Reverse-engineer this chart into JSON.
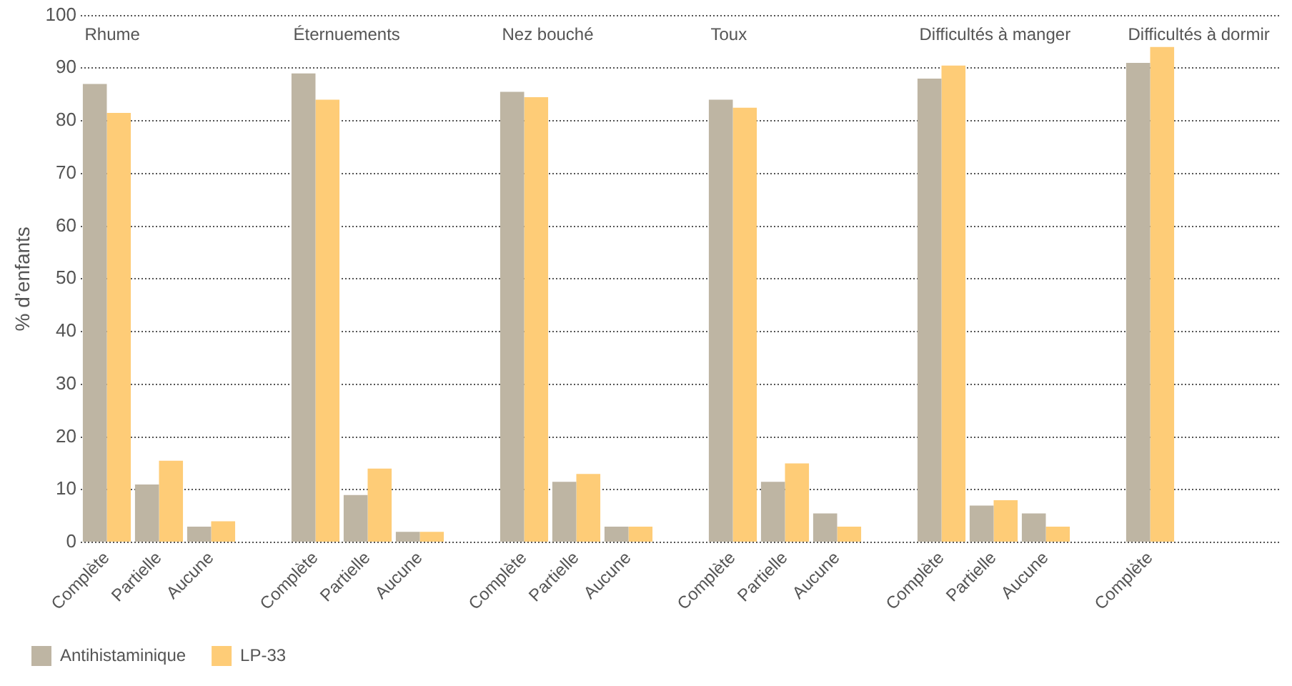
{
  "chart_data": {
    "type": "bar",
    "ylabel": "% d’enfants",
    "categories": [
      "Complète",
      "Partielle",
      "Aucune",
      null,
      "Complète",
      "Partielle",
      "Aucune",
      null,
      "Complète",
      "Partielle",
      "Aucune",
      null,
      "Complète",
      "Partielle",
      "Aucune",
      null,
      "Complète",
      "Partielle",
      "Aucune",
      null,
      "Complète",
      null,
      null
    ],
    "series": [
      {
        "name": "Antihistaminique",
        "color": "#beb5a3",
        "values": [
          87,
          11,
          3,
          null,
          89,
          9,
          2,
          null,
          85.5,
          11.5,
          3,
          null,
          84,
          11.5,
          5.5,
          null,
          88,
          7,
          5.5,
          null,
          91,
          null,
          null
        ]
      },
      {
        "name": "LP-33",
        "color": "#fecc77",
        "values": [
          81.5,
          15.5,
          4,
          null,
          84,
          14,
          2,
          null,
          84.5,
          13,
          3,
          null,
          82.5,
          15,
          3,
          null,
          90.5,
          8,
          3,
          null,
          94,
          null,
          null
        ]
      }
    ],
    "annotations": [
      "Rhume",
      "Éternuements",
      "Nez bouché",
      "Toux",
      "Difficultés à manger",
      "Difficultés à dormir"
    ],
    "ylim": [
      0,
      100
    ],
    "yticks": [
      0,
      10,
      20,
      30,
      40,
      50,
      60,
      70,
      80,
      90,
      100
    ],
    "grid": "y",
    "legend": "bottom left"
  }
}
